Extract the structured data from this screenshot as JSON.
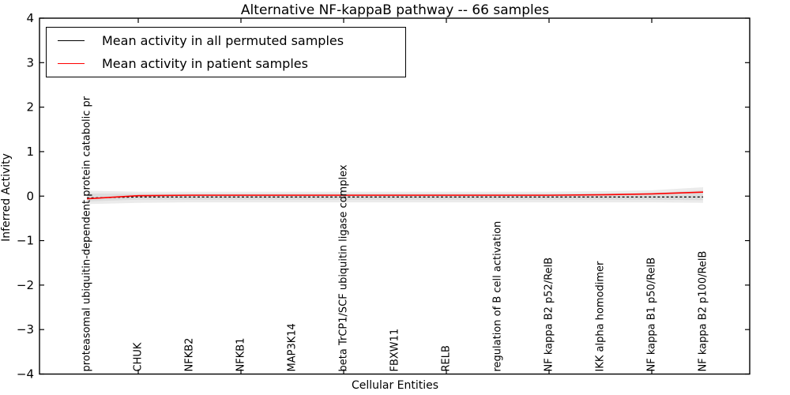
{
  "chart_data": {
    "type": "line",
    "title": "Alternative NF-kappaB pathway -- 66 samples",
    "xlabel": "Cellular Entities",
    "ylabel": "Inferred Activity",
    "ylim": [
      -4,
      4
    ],
    "yticks": [
      4,
      3,
      2,
      1,
      0,
      -1,
      -2,
      -3,
      -4
    ],
    "xtick_indices": [
      1,
      3,
      5,
      7,
      9,
      11
    ],
    "grid": false,
    "legend_position": "upper left",
    "categories": [
      "proteasomal ubiquitin-dependent protein catabolic pr",
      "CHUK",
      "NFKB2",
      "NFKB1",
      "MAP3K14",
      "beta TrCP1/SCF ubiquitin ligase complex",
      "FBXW11",
      "RELB",
      "regulation of B cell activation",
      "NF kappa B2 p52/RelB",
      "IKK alpha homodimer",
      "NF kappa B1 p50/RelB",
      "NF kappa B2 p100/RelB"
    ],
    "series": [
      {
        "name": "Mean activity in all permuted samples",
        "color": "#000000",
        "style": "dashed",
        "values": [
          -0.04,
          -0.02,
          -0.02,
          -0.02,
          -0.02,
          -0.02,
          -0.02,
          -0.02,
          -0.02,
          -0.02,
          -0.02,
          -0.02,
          -0.02
        ]
      },
      {
        "name": "Mean activity in patient samples",
        "color": "#ff0000",
        "style": "solid",
        "values": [
          -0.06,
          0.01,
          0.02,
          0.02,
          0.02,
          0.02,
          0.02,
          0.02,
          0.02,
          0.02,
          0.03,
          0.05,
          0.09
        ]
      }
    ],
    "bands": [
      {
        "name": "permuted-range-outer",
        "color": "#ebebeb",
        "upper": [
          0.12,
          0.1,
          0.1,
          0.1,
          0.1,
          0.1,
          0.1,
          0.1,
          0.1,
          0.1,
          0.11,
          0.13,
          0.2
        ],
        "lower": [
          -0.18,
          -0.15,
          -0.14,
          -0.14,
          -0.14,
          -0.14,
          -0.14,
          -0.14,
          -0.14,
          -0.14,
          -0.14,
          -0.14,
          -0.15
        ]
      },
      {
        "name": "permuted-range-inner",
        "color": "#dcdcdc",
        "upper": [
          0.06,
          0.05,
          0.05,
          0.05,
          0.05,
          0.05,
          0.05,
          0.05,
          0.05,
          0.05,
          0.06,
          0.07,
          0.13
        ],
        "lower": [
          -0.12,
          -0.08,
          -0.08,
          -0.08,
          -0.08,
          -0.08,
          -0.08,
          -0.08,
          -0.08,
          -0.08,
          -0.08,
          -0.08,
          -0.09
        ]
      }
    ]
  }
}
